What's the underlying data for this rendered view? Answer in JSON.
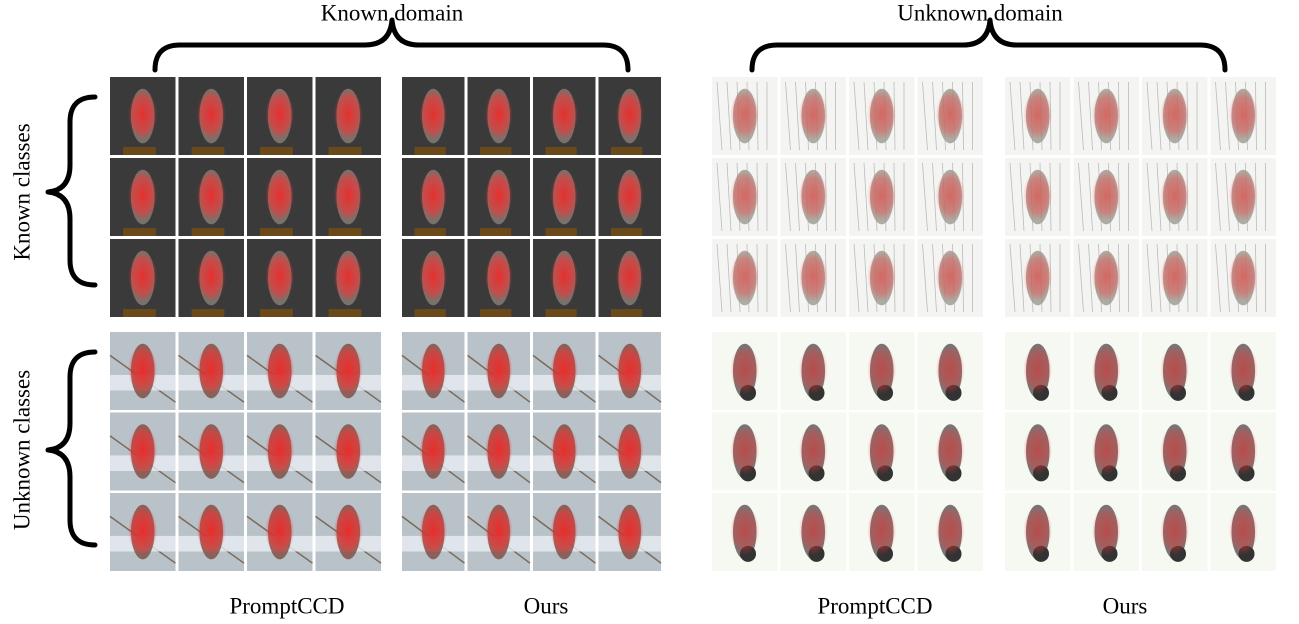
{
  "domains": [
    "Known domain",
    "Unknown domain"
  ],
  "classes": [
    "Known classes",
    "Unknown classes"
  ],
  "methods": [
    "PromptCCD",
    "Ours",
    "PromptCCD",
    "Ours"
  ]
}
